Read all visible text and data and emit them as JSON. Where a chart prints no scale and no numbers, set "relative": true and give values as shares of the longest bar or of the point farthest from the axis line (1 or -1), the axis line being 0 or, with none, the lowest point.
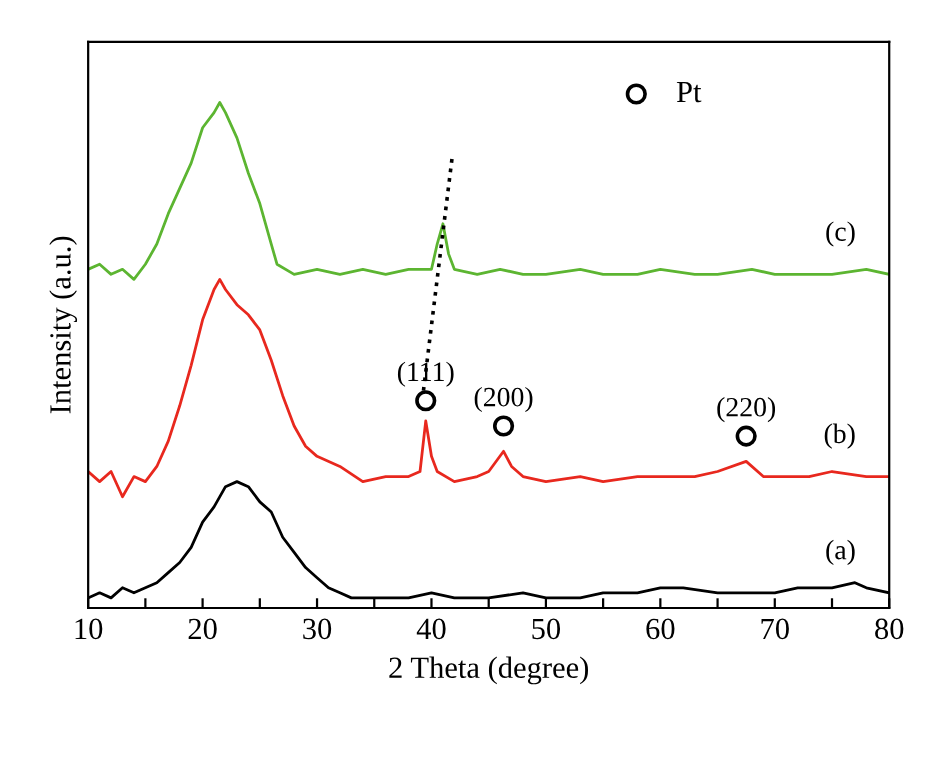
{
  "chart_data": {
    "type": "line",
    "relative": true,
    "xlabel": "2 Theta (degree)",
    "ylabel": "Intensity (a.u.)",
    "xlim": [
      10,
      80
    ],
    "xticks": [
      10,
      {
        "value": 15,
        "label": null
      },
      20,
      {
        "value": 25,
        "label": null
      },
      30,
      {
        "value": 35,
        "label": null
      },
      40,
      {
        "value": 45,
        "label": null
      },
      50,
      {
        "value": 55,
        "label": null
      },
      60,
      {
        "value": 65,
        "label": null
      },
      70,
      {
        "value": 75,
        "label": null
      },
      80
    ],
    "grid": false,
    "legend": "top right",
    "marker": "none",
    "line_style": "solid",
    "series": [
      {
        "name": "(a)",
        "color": "#000000",
        "x": [
          10,
          11,
          12,
          13,
          14,
          15,
          16,
          17,
          18,
          19,
          20,
          21,
          22,
          23,
          24,
          25,
          26,
          27,
          28,
          29,
          30,
          31,
          32,
          33,
          35,
          38,
          40,
          42,
          45,
          48,
          50,
          53,
          55,
          58,
          60,
          62,
          65,
          68,
          70,
          72,
          75,
          77,
          78,
          80
        ],
        "values": [
          0.02,
          0.03,
          0.02,
          0.04,
          0.03,
          0.04,
          0.05,
          0.07,
          0.09,
          0.12,
          0.17,
          0.2,
          0.24,
          0.25,
          0.24,
          0.21,
          0.19,
          0.14,
          0.11,
          0.08,
          0.06,
          0.04,
          0.03,
          0.02,
          0.02,
          0.02,
          0.03,
          0.02,
          0.02,
          0.03,
          0.02,
          0.02,
          0.03,
          0.03,
          0.04,
          0.04,
          0.03,
          0.03,
          0.03,
          0.04,
          0.04,
          0.05,
          0.04,
          0.03
        ]
      },
      {
        "name": "(b)",
        "color": "#e8281e",
        "x": [
          10,
          11,
          12,
          13,
          14,
          15,
          16,
          17,
          18,
          19,
          20,
          21,
          21.5,
          22,
          23,
          24,
          25,
          26,
          27,
          28,
          29,
          30,
          32,
          34,
          36,
          38,
          39,
          39.5,
          40,
          40.5,
          42,
          44,
          45,
          46.3,
          47,
          48,
          50,
          53,
          55,
          58,
          60,
          63,
          65,
          67.5,
          69,
          70,
          73,
          75,
          78,
          80
        ],
        "values": [
          0.27,
          0.25,
          0.27,
          0.22,
          0.26,
          0.25,
          0.28,
          0.33,
          0.4,
          0.48,
          0.57,
          0.63,
          0.65,
          0.63,
          0.6,
          0.58,
          0.55,
          0.49,
          0.42,
          0.36,
          0.32,
          0.3,
          0.28,
          0.25,
          0.26,
          0.26,
          0.27,
          0.37,
          0.3,
          0.27,
          0.25,
          0.26,
          0.27,
          0.31,
          0.28,
          0.26,
          0.25,
          0.26,
          0.25,
          0.26,
          0.26,
          0.26,
          0.27,
          0.29,
          0.26,
          0.26,
          0.26,
          0.27,
          0.26,
          0.26
        ]
      },
      {
        "name": "(c)",
        "color": "#5cb531",
        "x": [
          10,
          11,
          12,
          13,
          14,
          15,
          16,
          17,
          18,
          19,
          20,
          21,
          21.5,
          22,
          23,
          24,
          25,
          26,
          26.5,
          28,
          30,
          32,
          34,
          36,
          38,
          40,
          40.5,
          41,
          41.5,
          42,
          44,
          46,
          48,
          50,
          53,
          55,
          58,
          60,
          63,
          65,
          68,
          70,
          73,
          75,
          78,
          80
        ],
        "values": [
          0.67,
          0.68,
          0.66,
          0.67,
          0.65,
          0.68,
          0.72,
          0.78,
          0.83,
          0.88,
          0.95,
          0.98,
          1.0,
          0.98,
          0.93,
          0.86,
          0.8,
          0.72,
          0.68,
          0.66,
          0.67,
          0.66,
          0.67,
          0.66,
          0.67,
          0.67,
          0.72,
          0.76,
          0.7,
          0.67,
          0.66,
          0.67,
          0.66,
          0.66,
          0.67,
          0.66,
          0.66,
          0.67,
          0.66,
          0.66,
          0.67,
          0.66,
          0.66,
          0.66,
          0.67,
          0.66
        ]
      },
      {
        "type": "line",
        "color": "#000000",
        "line_style": "dotted",
        "x": [
          39.3,
          41.8
        ],
        "values": [
          0.43,
          0.89
        ]
      },
      {
        "type": "scatter",
        "name": "Pt",
        "color": "#000000",
        "marker": "circle",
        "x": [
          39.5,
          46.3,
          67.5
        ],
        "values": [
          0.41,
          0.36,
          0.34
        ]
      }
    ],
    "annotations": [
      {
        "text": "(111)",
        "x": 39.5,
        "y": 0.41
      },
      {
        "text": "(200)",
        "x": 46.3,
        "y": 0.36
      },
      {
        "text": "(220)",
        "x": 67.5,
        "y": 0.34
      }
    ]
  }
}
